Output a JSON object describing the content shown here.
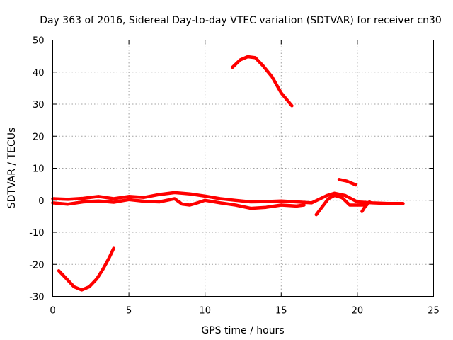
{
  "chart_data": {
    "type": "line",
    "title": "Day 363 of 2016, Sidereal Day-to-day VTEC variation (SDTVAR) for receiver cn30",
    "xlabel": "GPS time / hours",
    "ylabel": "SDTVAR / TECUs",
    "xlim": [
      0,
      25
    ],
    "ylim": [
      -30,
      50
    ],
    "xticks": [
      0,
      5,
      10,
      15,
      20,
      25
    ],
    "yticks": [
      -30,
      -20,
      -10,
      0,
      10,
      20,
      30,
      40,
      50
    ],
    "grid": true,
    "color": "#ff0000",
    "series": [
      {
        "name": "arc-negative-early",
        "points": [
          [
            0.4,
            -22
          ],
          [
            0.9,
            -24.5
          ],
          [
            1.4,
            -27
          ],
          [
            1.9,
            -28
          ],
          [
            2.4,
            -27
          ],
          [
            2.9,
            -24.5
          ],
          [
            3.3,
            -21.5
          ],
          [
            3.7,
            -18
          ],
          [
            4.0,
            -15
          ]
        ]
      },
      {
        "name": "arc-high-positive",
        "points": [
          [
            11.8,
            41.5
          ],
          [
            12.3,
            43.8
          ],
          [
            12.8,
            44.8
          ],
          [
            13.3,
            44.5
          ],
          [
            13.8,
            42
          ],
          [
            14.4,
            38.5
          ],
          [
            15.0,
            33.5
          ],
          [
            15.7,
            29.5
          ]
        ]
      },
      {
        "name": "band-main-upper",
        "points": [
          [
            0,
            0.5
          ],
          [
            1,
            0.3
          ],
          [
            2,
            0.6
          ],
          [
            3,
            1.2
          ],
          [
            4,
            0.5
          ],
          [
            5,
            1.2
          ],
          [
            6,
            0.9
          ],
          [
            7,
            1.8
          ],
          [
            8,
            2.4
          ],
          [
            9,
            2
          ],
          [
            10,
            1.3
          ],
          [
            11,
            0.5
          ],
          [
            12,
            0
          ],
          [
            13,
            -0.5
          ],
          [
            14,
            -0.4
          ],
          [
            15,
            -0.2
          ],
          [
            16,
            -0.5
          ],
          [
            17,
            -0.8
          ],
          [
            18,
            1.5
          ],
          [
            18.5,
            2.2
          ],
          [
            19.2,
            1.5
          ],
          [
            20,
            -0.5
          ],
          [
            21,
            -0.8
          ],
          [
            22,
            -1
          ],
          [
            23,
            -1
          ]
        ]
      },
      {
        "name": "band-main-lower",
        "points": [
          [
            0,
            -0.8
          ],
          [
            1,
            -1.2
          ],
          [
            2,
            -0.5
          ],
          [
            3,
            -0.2
          ],
          [
            4,
            -0.6
          ],
          [
            5,
            0.2
          ],
          [
            6,
            -0.3
          ],
          [
            7,
            -0.5
          ],
          [
            8,
            0.5
          ],
          [
            8.5,
            -1.2
          ],
          [
            9,
            -1.5
          ],
          [
            9.5,
            -0.8
          ],
          [
            10,
            0
          ],
          [
            11,
            -0.8
          ],
          [
            12,
            -1.5
          ],
          [
            13,
            -2.5
          ],
          [
            14,
            -2.2
          ],
          [
            15,
            -1.5
          ],
          [
            16,
            -1.8
          ],
          [
            16.5,
            -1.5
          ]
        ]
      },
      {
        "name": "arc-late-rising",
        "points": [
          [
            17.3,
            -4.5
          ],
          [
            17.7,
            -2
          ],
          [
            18.1,
            0.5
          ],
          [
            18.5,
            1.5
          ],
          [
            19.0,
            0.8
          ],
          [
            19.5,
            -1.5
          ],
          [
            20.0,
            -1.5
          ],
          [
            20.6,
            -1.5
          ]
        ]
      },
      {
        "name": "arc-late-dip",
        "points": [
          [
            20.3,
            -3.5
          ],
          [
            20.5,
            -2
          ],
          [
            20.8,
            -0.5
          ]
        ]
      },
      {
        "name": "arc-late-positive",
        "points": [
          [
            18.8,
            6.5
          ],
          [
            19.3,
            6
          ],
          [
            19.9,
            4.8
          ]
        ]
      }
    ]
  }
}
